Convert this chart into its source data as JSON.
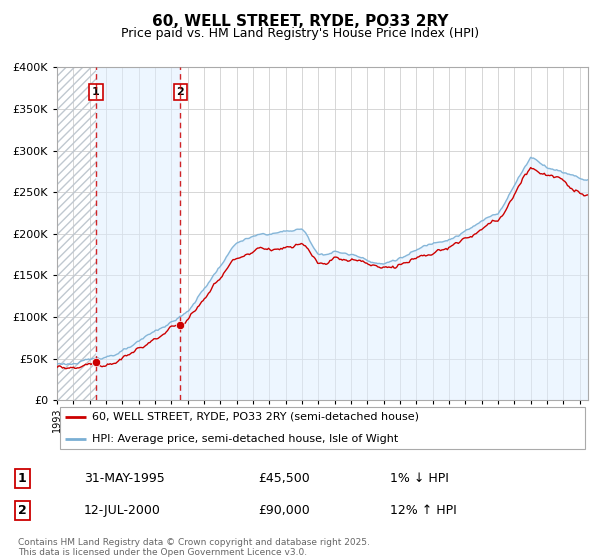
{
  "title": "60, WELL STREET, RYDE, PO33 2RY",
  "subtitle": "Price paid vs. HM Land Registry's House Price Index (HPI)",
  "legend_line1": "60, WELL STREET, RYDE, PO33 2RY (semi-detached house)",
  "legend_line2": "HPI: Average price, semi-detached house, Isle of Wight",
  "transaction1_date_str": "31-MAY-1995",
  "transaction1_price_str": "£45,500",
  "transaction1_hpi_str": "1% ↓ HPI",
  "transaction2_date_str": "12-JUL-2000",
  "transaction2_price_str": "£90,000",
  "transaction2_hpi_str": "12% ↑ HPI",
  "footer": "Contains HM Land Registry data © Crown copyright and database right 2025.\nThis data is licensed under the Open Government Licence v3.0.",
  "transaction1_year": 1995.38,
  "transaction1_value": 45500,
  "transaction2_year": 2000.54,
  "transaction2_value": 90000,
  "price_line_color": "#cc0000",
  "hpi_line_color": "#7aafd4",
  "hpi_fill_color": "#ddeeff",
  "vline_color": "#cc0000",
  "ylim": [
    0,
    400000
  ],
  "xlim_start": 1993,
  "xlim_end": 2025.5
}
